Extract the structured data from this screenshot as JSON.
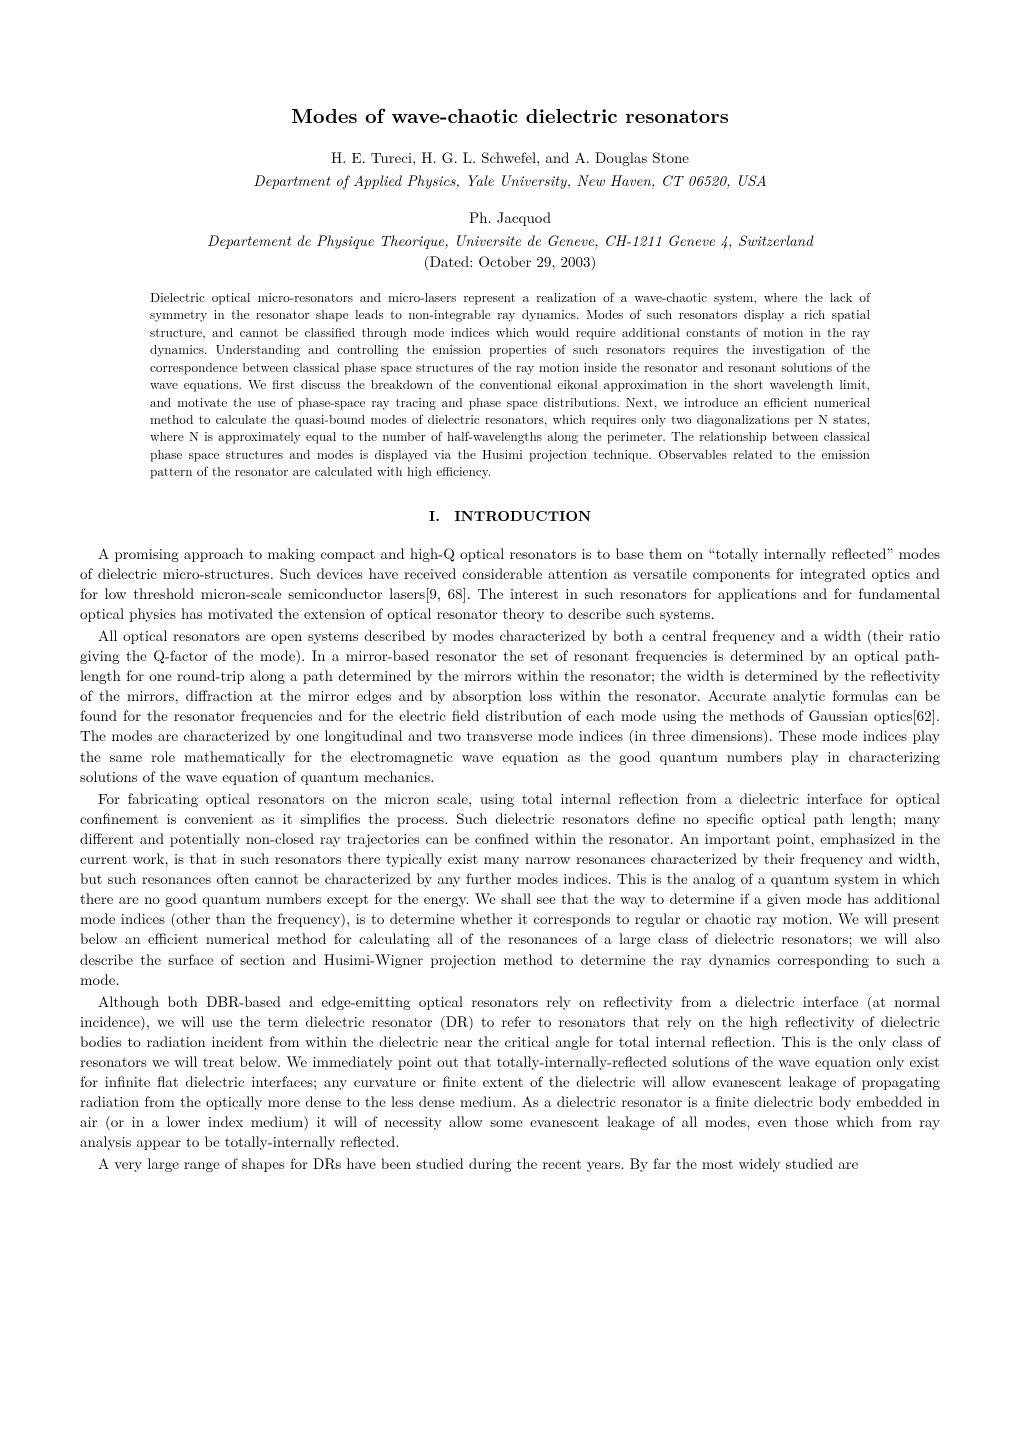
{
  "title": "Modes of wave-chaotic dielectric resonators",
  "authors1": "H. E. Tureci, H. G. L. Schwefel, and A. Douglas Stone",
  "affiliation1": "Department of Applied Physics, Yale University, New Haven, CT 06520, USA",
  "authors2": "Ph. Jacquod",
  "affiliation2": "Departement de Physique Theorique, Universite de Geneve, CH-1211 Geneve 4, Switzerland",
  "dated": "(Dated: October 29, 2003)",
  "abstract": "Dielectric optical micro-resonators and micro-lasers represent a realization of a wave-chaotic system, where the lack of symmetry in the resonator shape leads to non-integrable ray dynamics. Modes of such resonators display a rich spatial structure, and cannot be classified through mode indices which would require additional constants of motion in the ray dynamics. Understanding and controlling the emission properties of such resonators requires the investigation of the correspondence between classical phase space structures of the ray motion inside the resonator and resonant solutions of the wave equations. We first discuss the breakdown of the conventional eikonal approximation in the short wavelength limit, and motivate the use of phase-space ray tracing and phase space distributions. Next, we introduce an efficient numerical method to calculate the quasi-bound modes of dielectric resonators, which requires only two diagonalizations per N states, where N is approximately equal to the number of half-wavelengths along the perimeter. The relationship between classical phase space structures and modes is displayed via the Husimi projection technique. Observables related to the emission pattern of the resonator are calculated with high efficiency.",
  "section1": "I. INTRODUCTION",
  "p1": "A promising approach to making compact and high-Q optical resonators is to base them on “totally internally reflected” modes of dielectric micro-structures. Such devices have received considerable attention as versatile components for integrated optics and for low threshold micron-scale semiconductor lasers[9, 68]. The interest in such resonators for applications and for fundamental optical physics has motivated the extension of optical resonator theory to describe such systems.",
  "p2": "All optical resonators are open systems described by modes characterized by both a central frequency and a width (their ratio giving the Q-factor of the mode). In a mirror-based resonator the set of resonant frequencies is determined by an optical path-length for one round-trip along a path determined by the mirrors within the resonator; the width is determined by the reflectivity of the mirrors, diffraction at the mirror edges and by absorption loss within the resonator. Accurate analytic formulas can be found for the resonator frequencies and for the electric field distribution of each mode using the methods of Gaussian optics[62]. The modes are characterized by one longitudinal and two transverse mode indices (in three dimensions). These mode indices play the same role mathematically for the electromagnetic wave equation as the good quantum numbers play in characterizing solutions of the wave equation of quantum mechanics.",
  "p3": "For fabricating optical resonators on the micron scale, using total internal reflection from a dielectric interface for optical confinement is convenient as it simplifies the process. Such dielectric resonators define no specific optical path length; many different and potentially non-closed ray trajectories can be confined within the resonator. An important point, emphasized in the current work, is that in such resonators there typically exist many narrow resonances characterized by their frequency and width, but such resonances often cannot be characterized by any further modes indices. This is the analog of a quantum system in which there are no good quantum numbers except for the energy. We shall see that the way to determine if a given mode has additional mode indices (other than the frequency), is to determine whether it corresponds to regular or chaotic ray motion. We will present below an efficient numerical method for calculating all of the resonances of a large class of dielectric resonators; we will also describe the surface of section and Husimi-Wigner projection method to determine the ray dynamics corresponding to such a mode.",
  "p4": "Although both DBR-based and edge-emitting optical resonators rely on reflectivity from a dielectric interface (at normal incidence), we will use the term dielectric resonator (DR) to refer to resonators that rely on the high reflectivity of dielectric bodies to radiation incident from within the dielectric near the critical angle for total internal reflection. This is the only class of resonators we will treat below. We immediately point out that totally-internally-reflected solutions of the wave equation only exist for infinite flat dielectric interfaces; any curvature or finite extent of the dielectric will allow evanescent leakage of propagating radiation from the optically more dense to the less dense medium. As a dielectric resonator is a finite dielectric body embedded in air (or in a lower index medium) it will of necessity allow some evanescent leakage of all modes, even those which from ray analysis appear to be totally-internally reflected.",
  "p5": "A very large range of shapes for DRs have been studied during the recent years. By far the most widely studied are"
}
